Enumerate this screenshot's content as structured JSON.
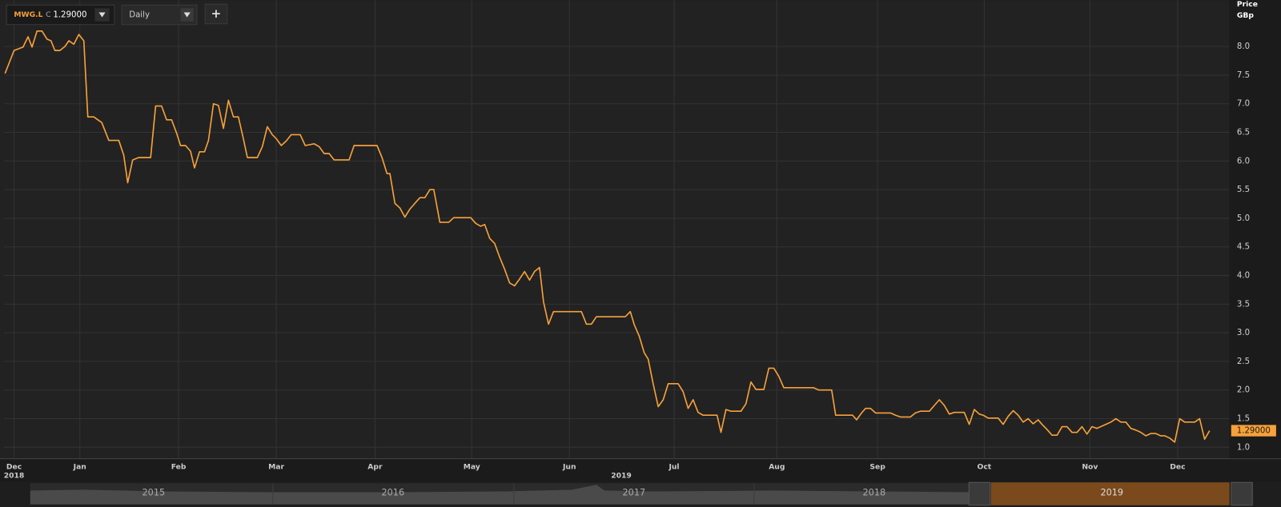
{
  "toolbar": {
    "symbol": "MWG.L",
    "price_type": "C",
    "last": "1.29000",
    "interval": "Daily",
    "add": "+"
  },
  "navigator": {
    "years": [
      "2015",
      "2016",
      "2017",
      "2018",
      "2019"
    ]
  },
  "chart_data": {
    "type": "line",
    "y_label": [
      "Price",
      "GBp"
    ],
    "color": "#f7a13a",
    "grid": true,
    "ylim": [
      0.8,
      8.81
    ],
    "yticks": [
      {
        "value": 1,
        "label": "1.0"
      },
      1.5,
      {
        "value": 2,
        "label": "2.0"
      },
      2.5,
      {
        "value": 3,
        "label": "3.0"
      },
      3.5,
      {
        "value": 4,
        "label": "4.0"
      },
      4.5,
      {
        "value": 5,
        "label": "5.0"
      },
      5.5,
      {
        "value": 6,
        "label": "6.0"
      },
      6.5,
      {
        "value": 7,
        "label": "7.0"
      },
      7.5,
      {
        "value": 8,
        "label": "8.0"
      }
    ],
    "xlim": [
      0.29,
      12.58
    ],
    "xticks": [
      {
        "value": 0.39,
        "label": "Dec"
      },
      {
        "value": 1.05,
        "label": "Jan"
      },
      {
        "value": 2.04,
        "label": "Feb"
      },
      {
        "value": 3.02,
        "label": "Mar"
      },
      {
        "value": 4.01,
        "label": "Apr"
      },
      {
        "value": 4.98,
        "label": "May"
      },
      {
        "value": 5.96,
        "label": "Jun"
      },
      {
        "value": 7.01,
        "label": "Jul"
      },
      {
        "value": 8.04,
        "label": "Aug"
      },
      {
        "value": 9.05,
        "label": "Sep"
      },
      {
        "value": 10.12,
        "label": "Oct"
      },
      {
        "value": 11.18,
        "label": "Nov"
      },
      {
        "value": 12.06,
        "label": "Dec"
      }
    ],
    "year_labels": [
      {
        "value": 0.39,
        "label": "2018"
      },
      {
        "value": 6.48,
        "label": "2019"
      }
    ],
    "last_label": {
      "value": 1.29,
      "label": "1.29000"
    },
    "x": [
      0.3,
      0.39,
      0.48,
      0.53,
      0.57,
      0.62,
      0.67,
      0.72,
      0.76,
      0.8,
      0.85,
      0.9,
      0.94,
      0.99,
      1.04,
      1.09,
      1.13,
      1.19,
      1.27,
      1.34,
      1.44,
      1.49,
      1.53,
      1.58,
      1.64,
      1.76,
      1.81,
      1.87,
      1.92,
      1.97,
      2.02,
      2.06,
      2.11,
      2.16,
      2.2,
      2.25,
      2.3,
      2.34,
      2.39,
      2.44,
      2.49,
      2.54,
      2.59,
      2.64,
      2.69,
      2.73,
      2.83,
      2.88,
      2.93,
      2.98,
      3.02,
      3.07,
      3.12,
      3.17,
      3.26,
      3.31,
      3.4,
      3.45,
      3.5,
      3.55,
      3.6,
      3.75,
      3.8,
      4.03,
      4.08,
      4.13,
      4.16,
      4.21,
      4.26,
      4.31,
      4.36,
      4.41,
      4.46,
      4.51,
      4.56,
      4.6,
      4.66,
      4.75,
      4.8,
      4.97,
      5.02,
      5.07,
      5.11,
      5.16,
      5.21,
      5.26,
      5.31,
      5.36,
      5.41,
      5.46,
      5.51,
      5.56,
      5.61,
      5.66,
      5.7,
      5.75,
      5.8,
      6.08,
      6.13,
      6.18,
      6.23,
      6.52,
      6.57,
      6.61,
      6.66,
      6.71,
      6.75,
      6.8,
      6.85,
      6.9,
      6.95,
      7.05,
      7.1,
      7.15,
      7.2,
      7.25,
      7.3,
      7.44,
      7.48,
      7.53,
      7.58,
      7.68,
      7.73,
      7.78,
      7.83,
      7.91,
      7.96,
      8.01,
      8.06,
      8.11,
      8.41,
      8.46,
      8.59,
      8.63,
      8.8,
      8.84,
      8.89,
      8.93,
      8.98,
      9.03,
      9.18,
      9.23,
      9.28,
      9.38,
      9.43,
      9.48,
      9.57,
      9.62,
      9.67,
      9.72,
      9.77,
      9.82,
      9.92,
      9.97,
      10.02,
      10.07,
      10.11,
      10.16,
      10.26,
      10.31,
      10.36,
      10.41,
      10.46,
      10.51,
      10.56,
      10.61,
      10.66,
      10.7,
      10.75,
      10.8,
      10.85,
      10.9,
      10.95,
      11.0,
      11.05,
      11.1,
      11.15,
      11.2,
      11.25,
      11.3,
      11.34,
      11.39,
      11.44,
      11.49,
      11.54,
      11.59,
      11.64,
      11.69,
      11.74,
      11.79,
      11.84,
      11.89,
      11.93,
      11.98,
      12.03,
      12.08,
      12.13,
      12.23,
      12.28,
      12.33,
      12.38
    ],
    "values": [
      7.53,
      7.93,
      7.99,
      8.17,
      7.99,
      8.27,
      8.27,
      8.13,
      8.1,
      7.93,
      7.93,
      8.0,
      8.1,
      8.04,
      8.21,
      8.1,
      6.77,
      6.77,
      6.67,
      6.36,
      6.36,
      6.1,
      5.62,
      6.02,
      6.06,
      6.06,
      6.96,
      6.96,
      6.72,
      6.72,
      6.49,
      6.27,
      6.27,
      6.17,
      5.88,
      6.16,
      6.16,
      6.36,
      7.0,
      6.97,
      6.57,
      7.06,
      6.77,
      6.77,
      6.39,
      6.06,
      6.06,
      6.25,
      6.6,
      6.46,
      6.39,
      6.27,
      6.35,
      6.46,
      6.46,
      6.27,
      6.3,
      6.25,
      6.13,
      6.13,
      6.02,
      6.02,
      6.27,
      6.27,
      6.06,
      5.78,
      5.78,
      5.26,
      5.18,
      5.02,
      5.16,
      5.26,
      5.36,
      5.36,
      5.5,
      5.5,
      4.93,
      4.93,
      5.01,
      5.01,
      4.91,
      4.86,
      4.89,
      4.65,
      4.56,
      4.32,
      4.11,
      3.87,
      3.82,
      3.94,
      4.07,
      3.92,
      4.07,
      4.14,
      3.54,
      3.15,
      3.37,
      3.37,
      3.15,
      3.15,
      3.28,
      3.28,
      3.37,
      3.14,
      2.94,
      2.65,
      2.54,
      2.11,
      1.71,
      1.83,
      2.11,
      2.11,
      1.97,
      1.68,
      1.83,
      1.61,
      1.56,
      1.56,
      1.26,
      1.66,
      1.63,
      1.63,
      1.76,
      2.14,
      2.01,
      2.01,
      2.38,
      2.38,
      2.24,
      2.04,
      2.04,
      2.0,
      2.0,
      1.56,
      1.56,
      1.48,
      1.6,
      1.68,
      1.68,
      1.6,
      1.6,
      1.56,
      1.53,
      1.53,
      1.6,
      1.63,
      1.63,
      1.73,
      1.83,
      1.73,
      1.58,
      1.61,
      1.61,
      1.4,
      1.66,
      1.58,
      1.56,
      1.51,
      1.51,
      1.4,
      1.54,
      1.64,
      1.56,
      1.44,
      1.5,
      1.41,
      1.48,
      1.4,
      1.31,
      1.21,
      1.21,
      1.36,
      1.36,
      1.26,
      1.26,
      1.36,
      1.23,
      1.36,
      1.33,
      1.37,
      1.4,
      1.44,
      1.5,
      1.44,
      1.44,
      1.33,
      1.3,
      1.26,
      1.2,
      1.24,
      1.24,
      1.2,
      1.2,
      1.16,
      1.09,
      1.5,
      1.44,
      1.44,
      1.5,
      1.14,
      1.29
    ]
  }
}
